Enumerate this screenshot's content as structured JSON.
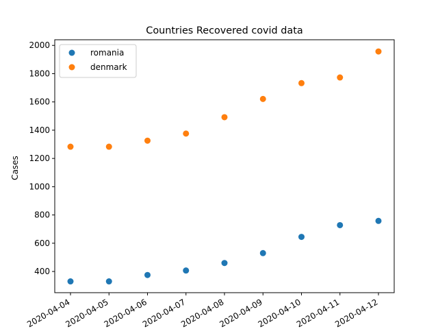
{
  "chart_data": {
    "type": "scatter",
    "title": "Countries Recovered covid data",
    "xlabel": "",
    "ylabel": "Cases",
    "x": [
      "2020-04-04",
      "2020-04-05",
      "2020-04-06",
      "2020-04-07",
      "2020-04-08",
      "2020-04-09",
      "2020-04-10",
      "2020-04-11",
      "2020-04-12"
    ],
    "ylim": [
      250,
      2040
    ],
    "yticks": [
      400,
      600,
      800,
      1000,
      1200,
      1400,
      1600,
      1800,
      2000
    ],
    "grid": false,
    "legend_position": "upper-left",
    "series": [
      {
        "name": "romania",
        "color": "#1f77b4",
        "values": [
          330,
          330,
          375,
          407,
          460,
          530,
          645,
          728,
          758
        ]
      },
      {
        "name": "denmark",
        "color": "#ff7f0e",
        "values": [
          1283,
          1283,
          1326,
          1376,
          1492,
          1621,
          1733,
          1773,
          1957
        ]
      }
    ]
  }
}
